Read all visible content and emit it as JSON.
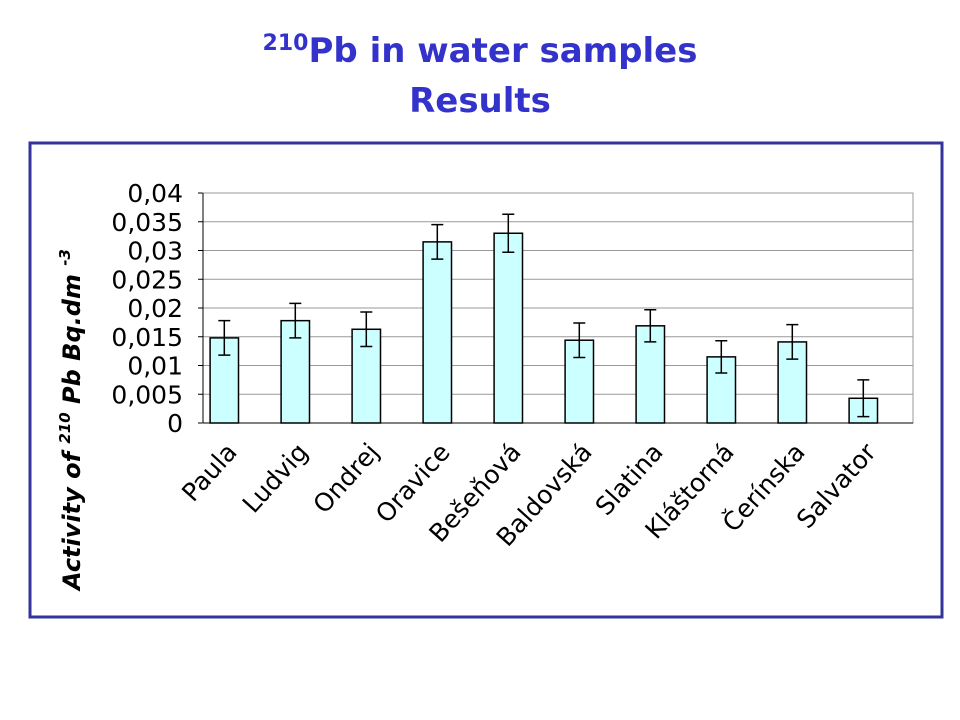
{
  "chart_data": {
    "type": "bar",
    "title_sup": "210",
    "title": "Pb in water samples",
    "subtitle": "Results",
    "ylabel_parts": [
      "Activity of ",
      "210",
      " Pb Bq.dm ",
      "-3"
    ],
    "categories": [
      "Paula",
      "Ludvig",
      "Ondrej",
      "Oravice",
      "Bešeňová",
      "Baldovská",
      "Slatina",
      "Kláštorná",
      "Čerínska",
      "Salvator"
    ],
    "values": [
      0.0148,
      0.0178,
      0.0163,
      0.0315,
      0.033,
      0.0144,
      0.0169,
      0.0115,
      0.0141,
      0.0043
    ],
    "errors": [
      0.003,
      0.003,
      0.003,
      0.003,
      0.0033,
      0.003,
      0.0028,
      0.0028,
      0.003,
      0.0032
    ],
    "color": "#ccffff",
    "ylim": [
      0,
      0.04
    ],
    "yticks": [
      0,
      {
        "value": 0.005,
        "label": "0,005"
      },
      {
        "value": 0.01,
        "label": "0,01"
      },
      {
        "value": 0.015,
        "label": "0,015"
      },
      {
        "value": 0.02,
        "label": "0,02"
      },
      {
        "value": 0.025,
        "label": "0,025"
      },
      {
        "value": 0.03,
        "label": "0,03"
      },
      {
        "value": 0.035,
        "label": "0,035"
      },
      {
        "value": 0.04,
        "label": "0,04"
      }
    ],
    "grid": true
  }
}
